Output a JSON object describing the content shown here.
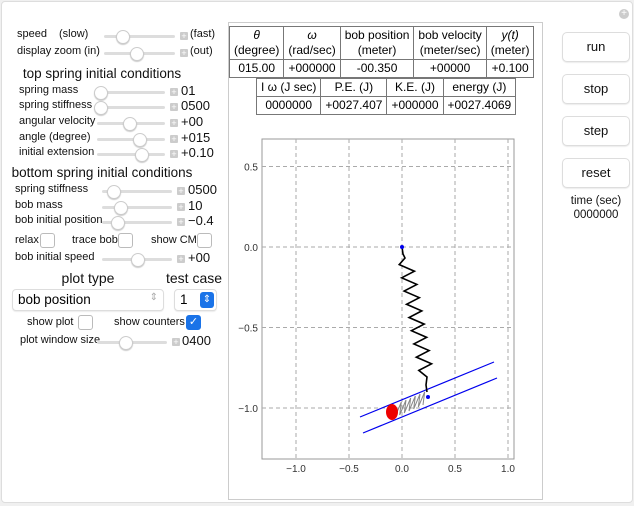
{
  "controls": {
    "speed": {
      "label": "speed",
      "min_label": "(slow)",
      "max_label": "(fast)",
      "position": 0.25
    },
    "zoom": {
      "label": "display zoom",
      "min_label": "(in)",
      "max_label": "(out)",
      "position": 0.45
    },
    "top_heading": "top spring initial conditions",
    "top": [
      {
        "label": "spring mass",
        "value": "01",
        "position": 0.05
      },
      {
        "label": "spring stiffness",
        "value": "0500",
        "position": 0.05
      },
      {
        "label": "angular velocity",
        "value": "+00",
        "position": 0.47
      },
      {
        "label": "angle (degree)",
        "value": "+015",
        "position": 0.62
      },
      {
        "label": "initial extension",
        "value": "+0.10",
        "position": 0.65
      }
    ],
    "bottom_heading": "bottom spring initial conditions",
    "bottom": [
      {
        "label": "spring stiffness",
        "value": "0500",
        "position": 0.15
      },
      {
        "label": "bob mass",
        "value": "10",
        "position": 0.25
      },
      {
        "label": "bob initial position",
        "value": "−0.4",
        "position": 0.22
      }
    ],
    "checks": {
      "relax": "relax",
      "trace_bob": "trace bob",
      "show_cm": "show CM"
    },
    "bob_speed": {
      "label": "bob initial speed",
      "value": "+00",
      "position": 0.5
    },
    "plot_type_heading": "plot type",
    "test_case_heading": "test case",
    "plot_type": "bob position",
    "test_case": "1",
    "show_plot": "show plot",
    "show_counters": "show counters",
    "show_counters_checked": true,
    "plot_window": {
      "label": "plot window size",
      "value": "0400",
      "position": 0.4
    }
  },
  "table1": {
    "headers": [
      [
        "θ",
        "(degree)"
      ],
      [
        "ω",
        "(rad/sec)"
      ],
      [
        "bob position",
        "(meter)"
      ],
      [
        "bob velocity",
        "(meter/sec)"
      ],
      [
        "y(t)",
        "(meter)"
      ]
    ],
    "values": [
      "015.00",
      "+000000",
      "-00.350",
      "+00000",
      "+0.100"
    ]
  },
  "table2": {
    "headers": [
      "I ω (J sec)",
      "P.E. (J)",
      "K.E. (J)",
      "energy (J)"
    ],
    "values": [
      "0000000",
      "+0027.407",
      "+000000",
      "+0027.4069"
    ]
  },
  "buttons": {
    "run": "run",
    "stop": "stop",
    "step": "step",
    "reset": "reset"
  },
  "time": {
    "label": "time (sec)",
    "value": "0000000"
  },
  "plot": {
    "xticks": [
      "−1.0",
      "−0.5",
      "0.0",
      "0.5",
      "1.0"
    ],
    "yticks": [
      "0.5",
      "0.0",
      "−0.5",
      "−1.0"
    ],
    "colors": {
      "rail": "#0000ee",
      "bob": "#ee0000"
    }
  }
}
